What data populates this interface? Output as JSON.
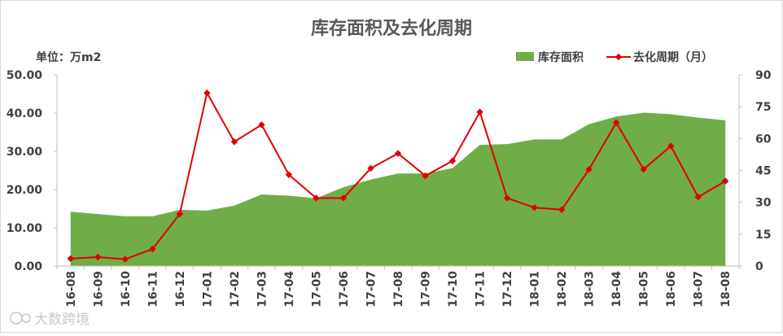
{
  "chart_data": {
    "type": "area",
    "title": "库存面积及去化周期",
    "unit_label": "单位：万m2",
    "categories": [
      "16-08",
      "16-09",
      "16-10",
      "16-11",
      "16-12",
      "17-01",
      "17-02",
      "17-03",
      "17-04",
      "17-05",
      "17-06",
      "17-07",
      "17-08",
      "17-09",
      "17-10",
      "17-11",
      "17-12",
      "18-01",
      "18-02",
      "18-03",
      "18-04",
      "18-05",
      "18-06",
      "18-07",
      "18-08"
    ],
    "series": [
      {
        "name": "库存面积",
        "type": "area",
        "axis": "left",
        "color": "#70ad47",
        "values": [
          14.2,
          13.6,
          13.0,
          13.0,
          14.7,
          14.5,
          15.8,
          18.7,
          18.4,
          17.7,
          20.6,
          22.6,
          24.2,
          24.2,
          25.6,
          31.7,
          31.9,
          33.1,
          33.1,
          37.1,
          39.1,
          40.1,
          39.7,
          38.8,
          38.1
        ]
      },
      {
        "name": "去化周期（月）",
        "type": "line",
        "axis": "right",
        "color": "#e00000",
        "values": [
          3.5,
          4.2,
          3.2,
          8.0,
          24.5,
          81.5,
          58.5,
          66.5,
          43.0,
          32.0,
          32.0,
          46.0,
          53.0,
          42.5,
          49.5,
          72.5,
          32.0,
          27.5,
          26.5,
          45.5,
          67.5,
          45.5,
          56.5,
          32.5,
          40.0
        ]
      }
    ],
    "y_left": {
      "min": 0,
      "max": 50,
      "step": 10,
      "ticks": [
        "0.00",
        "10.00",
        "20.00",
        "30.00",
        "40.00",
        "50.00"
      ]
    },
    "y_right": {
      "min": 0,
      "max": 90,
      "step": 15,
      "ticks": [
        "0",
        "15",
        "30",
        "45",
        "60",
        "75",
        "90"
      ]
    },
    "legend_position": "top-right",
    "grid": false
  },
  "watermark": "大数跨境"
}
